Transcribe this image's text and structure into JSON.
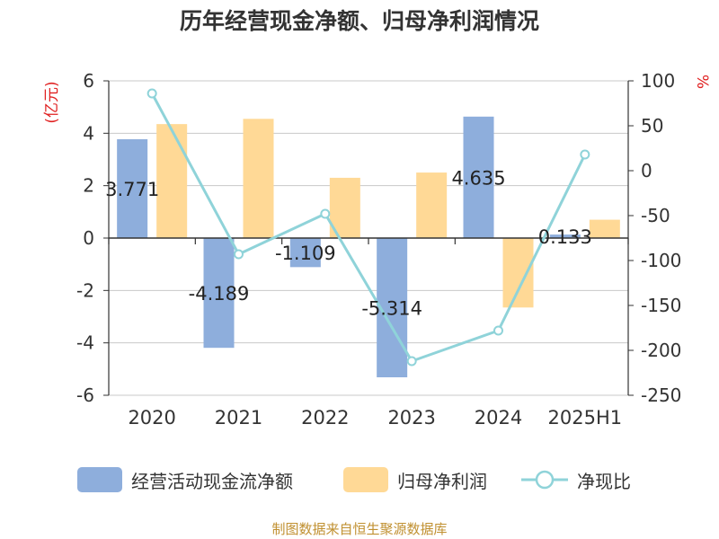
{
  "title": "历年经营现金净额、归母净利润情况",
  "source": "制图数据来自恒生聚源数据库",
  "colors": {
    "cash_flow": "#8eaedc",
    "net_profit": "#ffd996",
    "ratio_line": "#8fd3d9",
    "axis": "#333333",
    "grid": "#c8c8c8",
    "axis_unit": "#e02020"
  },
  "chart_data": {
    "type": "bar",
    "categories": [
      "2020",
      "2021",
      "2022",
      "2023",
      "2024",
      "2025H1"
    ],
    "left_axis": {
      "unit": "(亿元)",
      "range": [
        -6,
        6
      ],
      "ticks": [
        "6",
        "4",
        "2",
        "0",
        "-2",
        "-4",
        "-6"
      ]
    },
    "right_axis": {
      "unit": "%",
      "range": [
        -250,
        100
      ],
      "ticks": [
        "100",
        "50",
        "0",
        "-50",
        "-100",
        "-150",
        "-200",
        "-250"
      ]
    },
    "grid": true,
    "legend_position": "bottom",
    "series": [
      {
        "name": "经营活动现金流净额",
        "type": "bar",
        "axis": "left",
        "values": [
          3.771,
          -4.189,
          -1.109,
          -5.314,
          4.635,
          0.133
        ],
        "labels": [
          "3.771",
          "-4.189",
          "-1.109",
          "-5.314",
          "4.635",
          "0.133"
        ]
      },
      {
        "name": "归母净利润",
        "type": "bar",
        "axis": "left",
        "values": [
          4.35,
          4.55,
          2.3,
          2.5,
          -2.65,
          0.7
        ]
      },
      {
        "name": "净现比",
        "type": "line",
        "axis": "right",
        "values": [
          86,
          -93,
          -48,
          -212,
          -178,
          18
        ]
      }
    ]
  }
}
